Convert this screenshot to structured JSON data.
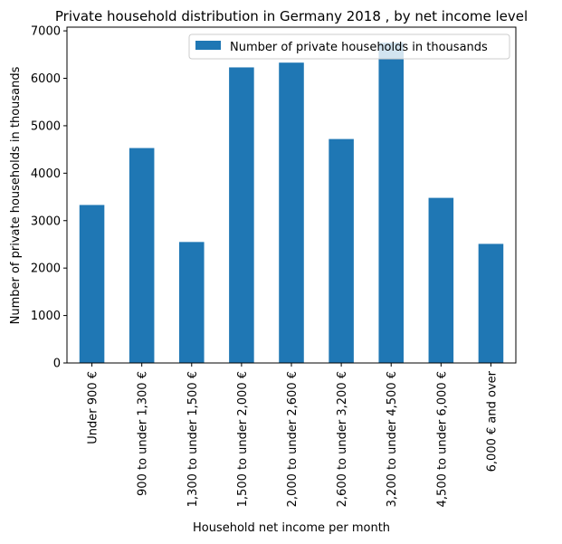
{
  "chart_data": {
    "type": "bar",
    "title": "Private household distribution in Germany 2018 , by net income level",
    "xlabel": "Household net income per month",
    "ylabel": "Number of private households in thousands",
    "categories": [
      "Under 900 €",
      "900 to under 1,300 €",
      "1,300 to under 1,500 €",
      "1,500 to under 2,000 €",
      "2,000 to under 2,600 €",
      "2,600 to under 3,200 €",
      "3,200 to under 4,500 €",
      "4,500 to under 6,000 €",
      "6,000 € and over"
    ],
    "series": [
      {
        "name": "Number of private households in thousands",
        "values": [
          3330,
          4530,
          2550,
          6230,
          6330,
          4720,
          6750,
          3480,
          2510
        ],
        "color": "#1f77b4"
      }
    ],
    "ylim": [
      0,
      7000
    ],
    "yticks": [
      0,
      1000,
      2000,
      3000,
      4000,
      5000,
      6000,
      7000
    ],
    "grid": false,
    "legend_position": "top-right"
  }
}
